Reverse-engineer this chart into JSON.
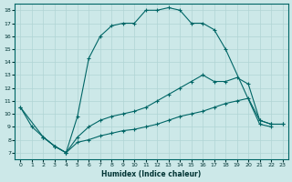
{
  "title": "",
  "xlabel": "Humidex (Indice chaleur)",
  "xlim": [
    -0.5,
    23.5
  ],
  "ylim": [
    6.5,
    18.5
  ],
  "xticks": [
    0,
    1,
    2,
    3,
    4,
    5,
    6,
    7,
    8,
    9,
    10,
    11,
    12,
    13,
    14,
    15,
    16,
    17,
    18,
    19,
    20,
    21,
    22,
    23
  ],
  "yticks": [
    7,
    8,
    9,
    10,
    11,
    12,
    13,
    14,
    15,
    16,
    17,
    18
  ],
  "bg_color": "#cce8e8",
  "grid_color": "#b0d4d4",
  "line_color": "#006666",
  "line1_x": [
    0,
    1,
    2,
    3,
    4,
    5,
    6,
    7,
    8,
    9,
    10,
    11,
    12,
    13,
    14,
    15,
    16,
    17,
    18,
    21,
    22
  ],
  "line1_y": [
    10.5,
    9.0,
    8.2,
    7.5,
    7.0,
    9.8,
    14.3,
    16.0,
    16.8,
    17.0,
    17.0,
    18.0,
    18.0,
    18.2,
    18.0,
    17.0,
    17.0,
    16.5,
    15.0,
    9.2,
    9.0
  ],
  "line2_x": [
    0,
    2,
    3,
    4,
    5,
    6,
    7,
    8,
    9,
    10,
    11,
    12,
    13,
    14,
    15,
    16,
    17,
    18,
    19,
    20,
    21,
    22,
    23
  ],
  "line2_y": [
    10.5,
    8.2,
    7.5,
    7.0,
    8.2,
    9.0,
    9.5,
    9.8,
    10.0,
    10.2,
    10.5,
    11.0,
    11.5,
    12.0,
    12.5,
    13.0,
    12.5,
    12.5,
    12.8,
    12.3,
    9.5,
    9.2,
    9.2
  ],
  "line3_x": [
    2,
    3,
    4,
    5,
    6,
    7,
    8,
    9,
    10,
    11,
    12,
    13,
    14,
    15,
    16,
    17,
    18,
    19,
    20,
    21,
    22,
    23
  ],
  "line3_y": [
    8.2,
    7.5,
    7.0,
    7.8,
    8.0,
    8.3,
    8.5,
    8.7,
    8.8,
    9.0,
    9.2,
    9.5,
    9.8,
    10.0,
    10.2,
    10.5,
    10.8,
    11.0,
    11.2,
    9.5,
    9.2,
    9.2
  ]
}
